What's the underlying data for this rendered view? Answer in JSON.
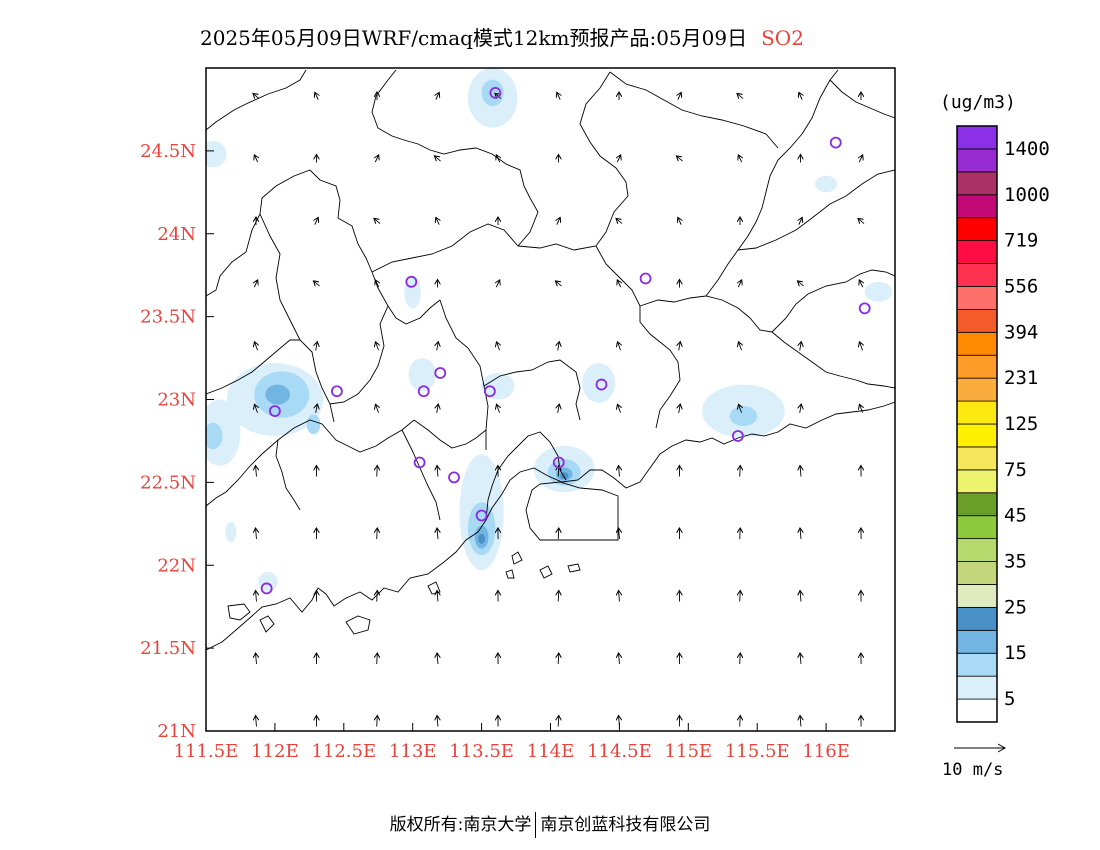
{
  "title": "2025年05月09日WRF/cmaq模式12km预报产品:05月09日",
  "species": "SO2",
  "units": "(ug/m3)",
  "wind_reference": "10 m/s",
  "footer": {
    "left": "版权所有:南京大学",
    "right": "南京创蓝科技有限公司"
  },
  "colors": {
    "axis_labels": "#e8423b",
    "title_species": "#e8423b",
    "stations": "#8a2be2"
  },
  "map": {
    "lon_range": [
      111.5,
      116.5
    ],
    "lat_range": [
      21.0,
      25.0
    ],
    "x_ticks": [
      {
        "v": 111.5,
        "label": "111.5E"
      },
      {
        "v": 112,
        "label": "112E"
      },
      {
        "v": 112.5,
        "label": "112.5E"
      },
      {
        "v": 113,
        "label": "113E"
      },
      {
        "v": 113.5,
        "label": "113.5E"
      },
      {
        "v": 114,
        "label": "114E"
      },
      {
        "v": 114.5,
        "label": "114.5E"
      },
      {
        "v": 115,
        "label": "115E"
      },
      {
        "v": 115.5,
        "label": "115.5E"
      },
      {
        "v": 116,
        "label": "116E"
      }
    ],
    "y_ticks": [
      {
        "v": 24.5,
        "label": "24.5N"
      },
      {
        "v": 24,
        "label": "24N"
      },
      {
        "v": 23.5,
        "label": "23.5N"
      },
      {
        "v": 23,
        "label": "23N"
      },
      {
        "v": 22.5,
        "label": "22.5N"
      },
      {
        "v": 22,
        "label": "22N"
      },
      {
        "v": 21.5,
        "label": "21.5N"
      },
      {
        "v": 21,
        "label": "21N"
      }
    ],
    "stations": [
      {
        "lon": 113.6,
        "lat": 24.85
      },
      {
        "lon": 116.07,
        "lat": 24.55
      },
      {
        "lon": 112.99,
        "lat": 23.71
      },
      {
        "lon": 114.69,
        "lat": 23.73
      },
      {
        "lon": 116.28,
        "lat": 23.55
      },
      {
        "lon": 113.2,
        "lat": 23.16
      },
      {
        "lon": 113.08,
        "lat": 23.05
      },
      {
        "lon": 112.45,
        "lat": 23.05
      },
      {
        "lon": 112.0,
        "lat": 22.93
      },
      {
        "lon": 113.56,
        "lat": 23.05
      },
      {
        "lon": 114.37,
        "lat": 23.09
      },
      {
        "lon": 113.05,
        "lat": 22.62
      },
      {
        "lon": 113.3,
        "lat": 22.53
      },
      {
        "lon": 114.06,
        "lat": 22.62
      },
      {
        "lon": 115.36,
        "lat": 22.78
      },
      {
        "lon": 113.5,
        "lat": 22.3
      },
      {
        "lon": 111.94,
        "lat": 21.86
      }
    ],
    "plumes": [
      {
        "lon": 113.58,
        "lat": 24.82,
        "rx": 0.18,
        "ry": 0.18,
        "level": 1
      },
      {
        "lon": 113.58,
        "lat": 24.85,
        "rx": 0.08,
        "ry": 0.08,
        "level": 2
      },
      {
        "lon": 111.55,
        "lat": 24.48,
        "rx": 0.1,
        "ry": 0.08,
        "level": 1
      },
      {
        "lon": 116.0,
        "lat": 24.3,
        "rx": 0.08,
        "ry": 0.05,
        "level": 1
      },
      {
        "lon": 116.38,
        "lat": 23.65,
        "rx": 0.1,
        "ry": 0.06,
        "level": 1
      },
      {
        "lon": 112.0,
        "lat": 23.0,
        "rx": 0.35,
        "ry": 0.22,
        "level": 1
      },
      {
        "lon": 112.05,
        "lat": 23.03,
        "rx": 0.2,
        "ry": 0.14,
        "level": 2
      },
      {
        "lon": 112.02,
        "lat": 23.03,
        "rx": 0.09,
        "ry": 0.06,
        "level": 3
      },
      {
        "lon": 111.6,
        "lat": 22.8,
        "rx": 0.15,
        "ry": 0.2,
        "level": 1
      },
      {
        "lon": 111.55,
        "lat": 22.78,
        "rx": 0.07,
        "ry": 0.08,
        "level": 2
      },
      {
        "lon": 113.07,
        "lat": 23.15,
        "rx": 0.1,
        "ry": 0.1,
        "level": 1
      },
      {
        "lon": 113.0,
        "lat": 23.65,
        "rx": 0.06,
        "ry": 0.1,
        "level": 1
      },
      {
        "lon": 113.62,
        "lat": 23.08,
        "rx": 0.12,
        "ry": 0.08,
        "level": 1
      },
      {
        "lon": 114.35,
        "lat": 23.1,
        "rx": 0.12,
        "ry": 0.12,
        "level": 1
      },
      {
        "lon": 115.4,
        "lat": 22.93,
        "rx": 0.3,
        "ry": 0.16,
        "level": 1
      },
      {
        "lon": 115.4,
        "lat": 22.9,
        "rx": 0.1,
        "ry": 0.06,
        "level": 2
      },
      {
        "lon": 114.1,
        "lat": 22.58,
        "rx": 0.22,
        "ry": 0.14,
        "level": 1
      },
      {
        "lon": 114.1,
        "lat": 22.56,
        "rx": 0.12,
        "ry": 0.08,
        "level": 2
      },
      {
        "lon": 114.1,
        "lat": 22.55,
        "rx": 0.06,
        "ry": 0.04,
        "level": 3
      },
      {
        "lon": 114.1,
        "lat": 22.54,
        "rx": 0.03,
        "ry": 0.02,
        "level": 4
      },
      {
        "lon": 113.5,
        "lat": 22.32,
        "rx": 0.16,
        "ry": 0.35,
        "level": 1
      },
      {
        "lon": 113.5,
        "lat": 22.22,
        "rx": 0.1,
        "ry": 0.16,
        "level": 2
      },
      {
        "lon": 113.5,
        "lat": 22.17,
        "rx": 0.05,
        "ry": 0.07,
        "level": 3
      },
      {
        "lon": 113.5,
        "lat": 22.16,
        "rx": 0.025,
        "ry": 0.03,
        "level": 4
      },
      {
        "lon": 112.28,
        "lat": 22.85,
        "rx": 0.05,
        "ry": 0.06,
        "level": 2
      },
      {
        "lon": 111.95,
        "lat": 21.9,
        "rx": 0.07,
        "ry": 0.06,
        "level": 1
      },
      {
        "lon": 111.68,
        "lat": 22.2,
        "rx": 0.04,
        "ry": 0.06,
        "level": 1
      }
    ]
  },
  "legend": {
    "colors": [
      "#ffffff",
      "#daeffa",
      "#a8daf5",
      "#73b5e2",
      "#4a90c8",
      "#e0eabf",
      "#c3d67c",
      "#b6da6e",
      "#8cc93c",
      "#6b9e28",
      "#eef36d",
      "#f5e65b",
      "#fef000",
      "#fde910",
      "#faad3d",
      "#fe9c2a",
      "#fe8b02",
      "#f35c2a",
      "#ff6f6a",
      "#fe3150",
      "#fe0d42",
      "#ff0000",
      "#c20976",
      "#aa3265",
      "#982bd2",
      "#8b30e6"
    ],
    "labels": [
      "5",
      "15",
      "25",
      "35",
      "45",
      "75",
      "125",
      "231",
      "394",
      "556",
      "719",
      "1000",
      "1400"
    ]
  }
}
